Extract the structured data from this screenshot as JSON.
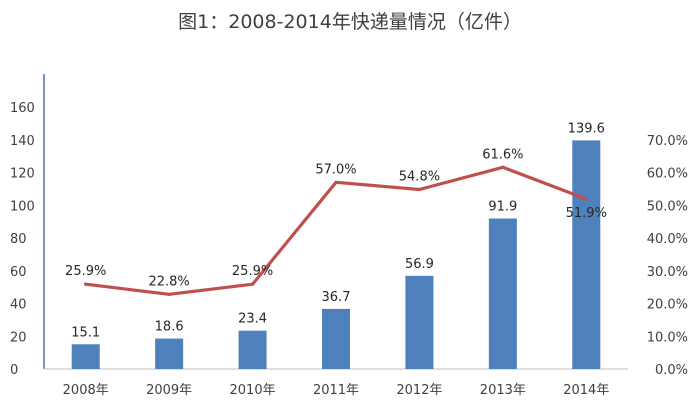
{
  "chart_data": {
    "type": "bar",
    "title": "图1：2008-2014年快递量情况（亿件）",
    "categories": [
      "2008年",
      "2009年",
      "2010年",
      "2011年",
      "2012年",
      "2013年",
      "2014年"
    ],
    "series": [
      {
        "name": "",
        "type": "bar",
        "axis": "left",
        "color": "#4F81BD",
        "values": [
          15.1,
          18.6,
          23.4,
          36.7,
          56.9,
          91.9,
          139.6
        ],
        "labels": [
          "15.1",
          "18.6",
          "23.4",
          "36.7",
          "56.9",
          "91.9",
          "139.6"
        ]
      },
      {
        "name": "",
        "type": "line",
        "axis": "right",
        "color": "#C0504D",
        "values": [
          25.9,
          22.8,
          25.9,
          57.0,
          54.8,
          61.6,
          51.9
        ],
        "labels": [
          "25.9%",
          "22.8%",
          "25.9%",
          "57.0%",
          "54.8%",
          "61.6%",
          "51.9%"
        ]
      }
    ],
    "y_left": {
      "ylim": [
        0,
        160
      ],
      "ticks": [
        "0",
        "20",
        "40",
        "60",
        "80",
        "100",
        "120",
        "140",
        "160"
      ]
    },
    "y_right": {
      "ylim": [
        0,
        70
      ],
      "ticks": [
        "0.0%",
        "10.0%",
        "20.0%",
        "30.0%",
        "40.0%",
        "50.0%",
        "60.0%",
        "70.0%"
      ]
    },
    "grid": false,
    "legend": "none"
  }
}
